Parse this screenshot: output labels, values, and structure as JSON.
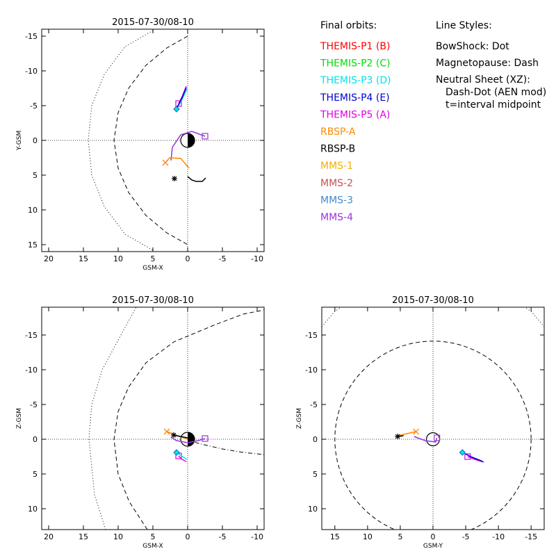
{
  "legend": {
    "header": "Final orbits:",
    "items": [
      {
        "label": "THEMIS-P1 (B)",
        "color": "#ff0000"
      },
      {
        "label": "THEMIS-P2 (C)",
        "color": "#00dd00"
      },
      {
        "label": "THEMIS-P3 (D)",
        "color": "#00e5e5"
      },
      {
        "label": "THEMIS-P4 (E)",
        "color": "#0000cc"
      },
      {
        "label": "THEMIS-P5 (A)",
        "color": "#e000e0"
      },
      {
        "label": "RBSP-A",
        "color": "#ff8800"
      },
      {
        "label": "RBSP-B",
        "color": "#000000"
      },
      {
        "label": "MMS-1",
        "color": "#f0b000"
      },
      {
        "label": "MMS-2",
        "color": "#c85050"
      },
      {
        "label": "MMS-3",
        "color": "#4488cc"
      },
      {
        "label": "MMS-4",
        "color": "#9933dd"
      }
    ]
  },
  "line_styles": {
    "header": "Line Styles:",
    "lines": [
      "BowShock: Dot",
      "Magnetopause: Dash",
      "Neutral Sheet (XZ):",
      "Dash-Dot (AEN mod)",
      "t=interval midpoint"
    ]
  },
  "chart_data": [
    {
      "type": "line",
      "title": "2015-07-30/08-10",
      "xlabel": "GSM-X",
      "ylabel": "Y-GSM",
      "xlim": [
        21,
        -11
      ],
      "ylim": [
        16,
        -16
      ],
      "xticks": [
        20,
        15,
        10,
        5,
        0,
        -5,
        -10
      ],
      "yticks": [
        -15,
        -10,
        -5,
        0,
        5,
        10,
        15
      ],
      "grid": false,
      "boundaries": [
        {
          "kind": "bowshock",
          "style": "dot",
          "points": [
            [
              5,
              -15.8
            ],
            [
              9,
              -13.5
            ],
            [
              12,
              -9.5
            ],
            [
              13.8,
              -5
            ],
            [
              14.3,
              0
            ],
            [
              13.8,
              5
            ],
            [
              12,
              9.5
            ],
            [
              9,
              13.5
            ],
            [
              5,
              15.8
            ]
          ]
        },
        {
          "kind": "magnetopause",
          "style": "dash",
          "points": [
            [
              0,
              -15
            ],
            [
              3,
              -13.3
            ],
            [
              6,
              -10.8
            ],
            [
              8.5,
              -7.5
            ],
            [
              10,
              -4
            ],
            [
              10.6,
              0
            ],
            [
              10,
              4
            ],
            [
              8.5,
              7.5
            ],
            [
              6,
              10.8
            ],
            [
              3,
              13.3
            ],
            [
              0,
              15
            ]
          ]
        }
      ],
      "series": [
        {
          "color": "#e000e0",
          "points": [
            [
              0.2,
              -7.8
            ],
            [
              0.8,
              -6.3
            ],
            [
              1.3,
              -5.3
            ]
          ],
          "end_marker": "square"
        },
        {
          "color": "#00e5e5",
          "points": [
            [
              0.1,
              -7.4
            ],
            [
              0.9,
              -5.7
            ],
            [
              1.6,
              -4.5
            ]
          ],
          "end_marker": "diamond"
        },
        {
          "color": "#0000cc",
          "points": [
            [
              0.2,
              -7.6
            ],
            [
              0.85,
              -6.0
            ],
            [
              1.5,
              -4.8
            ]
          ]
        },
        {
          "color": "#9933dd",
          "points": [
            [
              2.4,
              2.9
            ],
            [
              2.2,
              1.0
            ],
            [
              1.0,
              -0.8
            ],
            [
              -0.6,
              -1.3
            ],
            [
              -2.5,
              -0.6
            ]
          ],
          "end_marker": "square"
        },
        {
          "color": "#ff8800",
          "points": [
            [
              -0.2,
              4.0
            ],
            [
              1.0,
              2.6
            ],
            [
              2.6,
              2.5
            ],
            [
              3.2,
              3.2
            ]
          ],
          "end_marker": "x"
        },
        {
          "color": "#000000",
          "points": [
            [
              0,
              5.2
            ],
            [
              -0.6,
              5.7
            ],
            [
              -1.2,
              5.9
            ],
            [
              -2.1,
              5.9
            ],
            [
              -2.6,
              5.4
            ]
          ],
          "start_marker": "asterisk",
          "start_point": [
            1.9,
            5.5
          ]
        }
      ]
    },
    {
      "type": "line",
      "title": "2015-07-30/08-10",
      "xlabel": "GSM-X",
      "ylabel": "Z-GSM",
      "xlim": [
        21,
        -11
      ],
      "ylim": [
        13,
        -19
      ],
      "xticks": [
        20,
        15,
        10,
        5,
        0,
        -5,
        -10
      ],
      "yticks": [
        10,
        5,
        0,
        -5,
        -10,
        -15
      ],
      "grid": false,
      "boundaries": [
        {
          "kind": "bowshock",
          "style": "dot",
          "points": [
            [
              11.8,
              13
            ],
            [
              13.4,
              8
            ],
            [
              14.2,
              0
            ],
            [
              13.8,
              -5
            ],
            [
              12.3,
              -10
            ],
            [
              9.6,
              -15
            ],
            [
              7.4,
              -19
            ]
          ]
        },
        {
          "kind": "magnetopause",
          "style": "dash",
          "points": [
            [
              5.8,
              13
            ],
            [
              8.4,
              9
            ],
            [
              10,
              5
            ],
            [
              10.6,
              0
            ],
            [
              10,
              -4
            ],
            [
              8.5,
              -7.5
            ],
            [
              6,
              -11
            ],
            [
              2,
              -14
            ],
            [
              -4,
              -16.5
            ],
            [
              -8,
              -18
            ],
            [
              -11,
              -18.6
            ]
          ]
        },
        {
          "kind": "neutral-sheet",
          "style": "dash-dot",
          "points": [
            [
              0.2,
              0.1
            ],
            [
              -2,
              0.7
            ],
            [
              -5,
              1.4
            ],
            [
              -8,
              1.9
            ],
            [
              -11,
              2.2
            ]
          ]
        }
      ],
      "series": [
        {
          "color": "#e000e0",
          "points": [
            [
              0.2,
              3.2
            ],
            [
              0.8,
              2.9
            ],
            [
              1.3,
              2.4
            ]
          ],
          "end_marker": "square"
        },
        {
          "color": "#00e5e5",
          "points": [
            [
              0.1,
              2.9
            ],
            [
              0.9,
              2.4
            ],
            [
              1.6,
              1.9
            ]
          ],
          "end_marker": "diamond"
        },
        {
          "color": "#9933dd",
          "points": [
            [
              2.4,
              -0.3
            ],
            [
              1.6,
              0.2
            ],
            [
              0,
              0.5
            ],
            [
              -1.5,
              0.2
            ],
            [
              -2.5,
              -0.1
            ]
          ],
          "end_marker": "square"
        },
        {
          "color": "#ff8800",
          "points": [
            [
              0,
              0
            ],
            [
              1.2,
              -0.4
            ],
            [
              2.2,
              -0.8
            ],
            [
              3.0,
              -1.1
            ]
          ],
          "end_marker": "x"
        },
        {
          "color": "#000000",
          "points": [
            [
              0,
              -0.2
            ],
            [
              1.0,
              -0.4
            ],
            [
              2.0,
              -0.6
            ]
          ],
          "start_marker": "asterisk",
          "start_point": [
            2.0,
            -0.6
          ]
        }
      ]
    },
    {
      "type": "line",
      "title": "2015-07-30/08-10",
      "xlabel": "GSM-Y",
      "ylabel": "Z-GSM",
      "xlim": [
        17,
        -17
      ],
      "ylim": [
        13,
        -19
      ],
      "xticks": [
        15,
        10,
        5,
        0,
        -5,
        -10,
        -15
      ],
      "yticks": [
        10,
        5,
        0,
        -5,
        -10,
        -15
      ],
      "grid": false,
      "boundaries": [
        {
          "kind": "bowshock",
          "style": "dot",
          "points": [
            [
              17,
              -16.2
            ],
            [
              15,
              -18.4
            ],
            [
              14,
              -19
            ]
          ]
        },
        {
          "kind": "bowshock",
          "style": "dot",
          "points": [
            [
              -17,
              -16.2
            ],
            [
              -15,
              -18.4
            ],
            [
              -14,
              -19
            ]
          ]
        },
        {
          "kind": "magnetopause",
          "style": "dash",
          "circle": {
            "cx": 0,
            "cy": 0,
            "r": 15
          }
        }
      ],
      "series": [
        {
          "color": "#e000e0",
          "points": [
            [
              -7.8,
              3.3
            ],
            [
              -6.4,
              2.9
            ],
            [
              -5.3,
              2.5
            ]
          ],
          "end_marker": "square"
        },
        {
          "color": "#00e5e5",
          "points": [
            [
              -7.4,
              3.1
            ],
            [
              -5.8,
              2.5
            ],
            [
              -4.5,
              1.9
            ]
          ],
          "end_marker": "diamond"
        },
        {
          "color": "#0000cc",
          "points": [
            [
              -7.6,
              3.2
            ],
            [
              -6.0,
              2.6
            ],
            [
              -4.9,
              2.1
            ]
          ]
        },
        {
          "color": "#9933dd",
          "points": [
            [
              2.9,
              -0.4
            ],
            [
              1.2,
              0.2
            ],
            [
              -0.4,
              0.4
            ],
            [
              -0.6,
              -0.2
            ]
          ],
          "end_marker": "square"
        },
        {
          "color": "#ff8800",
          "points": [
            [
              5.4,
              -0.5
            ],
            [
              4.0,
              -0.8
            ],
            [
              2.6,
              -1.1
            ]
          ],
          "end_marker": "x"
        },
        {
          "color": "#000000",
          "points": [
            [
              5.4,
              -0.4
            ],
            [
              4.5,
              -0.5
            ]
          ],
          "start_marker": "asterisk",
          "start_point": [
            5.4,
            -0.4
          ]
        }
      ]
    }
  ]
}
